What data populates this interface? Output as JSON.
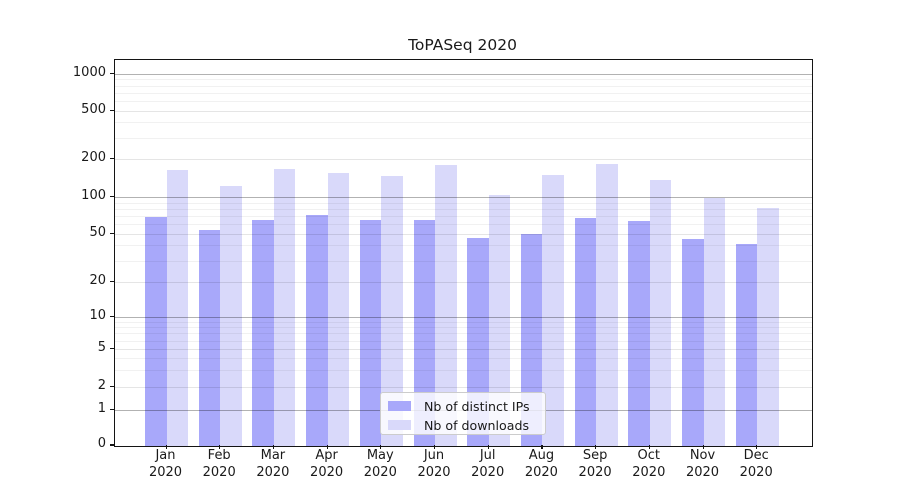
{
  "chart_data": {
    "type": "bar",
    "title": "ToPASeq 2020",
    "categories": [
      "Jan 2020",
      "Feb 2020",
      "Mar 2020",
      "Apr 2020",
      "May 2020",
      "Jun 2020",
      "Jul 2020",
      "Aug 2020",
      "Sep 2020",
      "Oct 2020",
      "Nov 2020",
      "Dec 2020"
    ],
    "series": [
      {
        "name": "Nb of distinct IPs",
        "color": "#a8a8fa",
        "values": [
          70,
          54,
          65,
          72,
          66,
          65,
          47,
          50,
          68,
          64,
          46,
          42
        ]
      },
      {
        "name": "Nb of downloads",
        "color": "#d9d9fa",
        "values": [
          165,
          123,
          169,
          158,
          149,
          180,
          105,
          151,
          185,
          139,
          99,
          82
        ]
      }
    ],
    "y_axis": {
      "scale": "symlog",
      "ticks": [
        0,
        1,
        2,
        5,
        10,
        20,
        50,
        100,
        200,
        500,
        1000
      ],
      "range": [
        0,
        1000
      ]
    },
    "x_axis": {
      "label": "",
      "tick_lines": 2
    },
    "legend_position": "lower center",
    "grid": "horizontal, strong at powers of 10, faint at 2-5 steps and log minors",
    "background": "#ffffff"
  }
}
